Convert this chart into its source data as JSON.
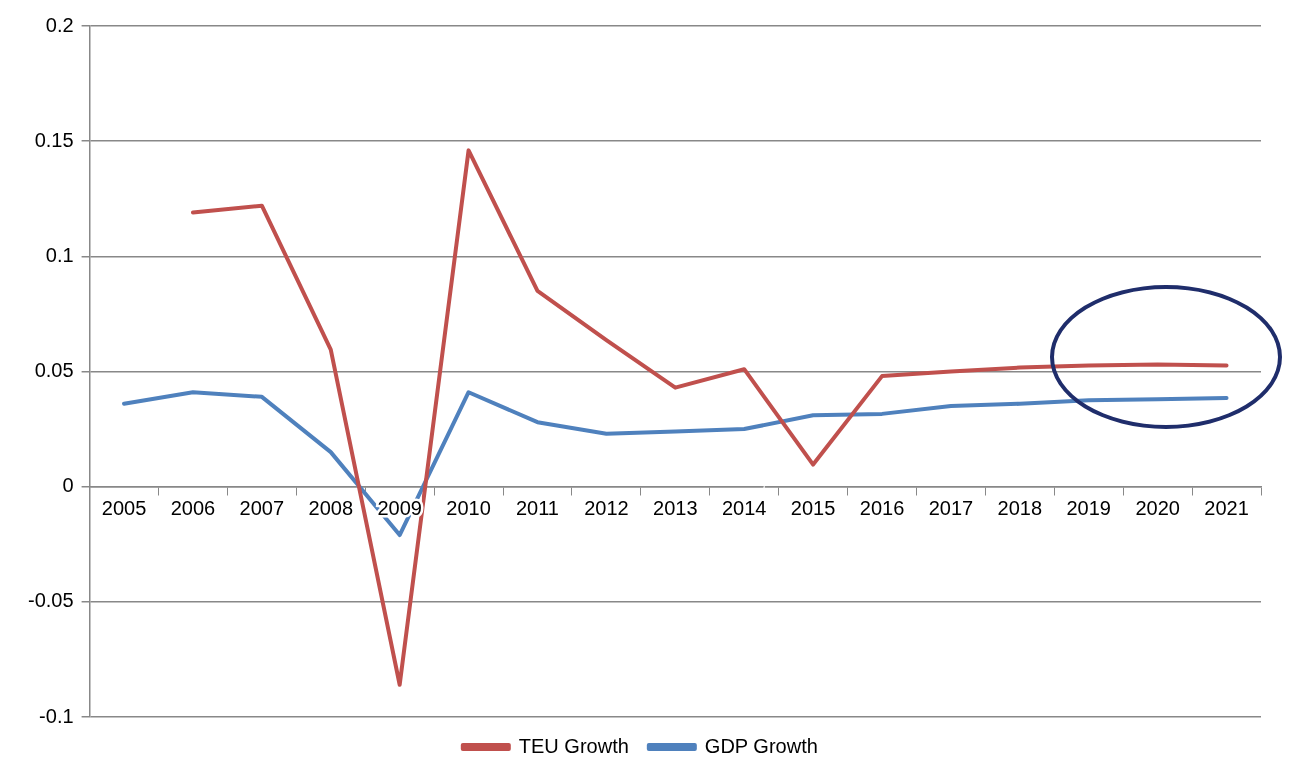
{
  "chart_data": {
    "type": "line",
    "categories": [
      "2005",
      "2006",
      "2007",
      "2008",
      "2009",
      "2010",
      "2011",
      "2012",
      "2013",
      "2014",
      "2015",
      "2016",
      "2017",
      "2018",
      "2019",
      "2020",
      "2021"
    ],
    "series": [
      {
        "name": "TEU Growth",
        "color": "#c0504d",
        "values": [
          null,
          0.119,
          0.122,
          0.0595,
          -0.086,
          0.146,
          0.085,
          0.0636,
          0.043,
          0.051,
          0.0096,
          0.048,
          0.05,
          0.0517,
          0.0526,
          0.053,
          0.0526
        ]
      },
      {
        "name": "GDP Growth",
        "color": "#4f81bd",
        "values": [
          0.036,
          0.041,
          0.039,
          0.015,
          -0.021,
          0.041,
          0.028,
          0.023,
          0.024,
          0.025,
          0.031,
          0.0316,
          0.035,
          0.036,
          0.0375,
          0.038,
          0.0385
        ]
      }
    ],
    "ylim": [
      -0.1,
      0.2
    ],
    "yticks": [
      -0.1,
      -0.05,
      0,
      0.05,
      0.1,
      0.15,
      0.2
    ],
    "grid": "y",
    "legend": "bottom"
  }
}
